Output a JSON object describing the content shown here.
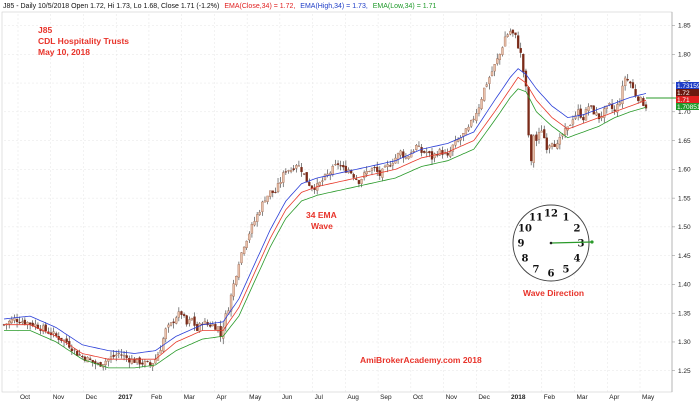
{
  "header": {
    "symbol_info": "J85 - Daily 10/5/2018 Open 1.72, Hi 1.73, Lo 1.68, Close 1.71 (-1.2%)",
    "ema_close": "EMA(Close,34) = 1.72,",
    "ema_high": "EMA(High,34) = 1.73,",
    "ema_low": "EMA(Low,34) = 1.71"
  },
  "annotations": {
    "ticker": "J85",
    "company": "CDL Hospitality Trusts",
    "date": "May 10, 2018",
    "ema_wave_line1": "34 EMA",
    "ema_wave_line2": "Wave",
    "wave_direction": "Wave Direction",
    "watermark": "AmiBrokerAcademy.com  2018"
  },
  "price_labels": [
    {
      "text": "1.73159",
      "color": "#1f3ec7"
    },
    {
      "text": "1.72",
      "color": "#6b1a10"
    },
    {
      "text": "1.71",
      "color": "#e02020"
    },
    {
      "text": "1.70851",
      "color": "#1f9a2a"
    }
  ],
  "clock": {
    "numbers": [
      "12",
      "1",
      "2",
      "3",
      "4",
      "5",
      "6",
      "7",
      "8",
      "9",
      "10",
      "11"
    ]
  },
  "colors": {
    "ema_close": "#e83b2c",
    "ema_high": "#2b3fd8",
    "ema_low": "#2a9a2a",
    "candle_up": "#e8c0aa",
    "candle_down": "#7a2a18",
    "wick": "#333333"
  },
  "chart_data": {
    "type": "candlestick",
    "ylim": [
      1.22,
      1.87
    ],
    "y_ticks": [
      "1.85",
      "1.80",
      "1.75",
      "1.70",
      "1.65",
      "1.60",
      "1.55",
      "1.50",
      "1.45",
      "1.40",
      "1.35",
      "1.30",
      "1.25"
    ],
    "x_ticks": [
      "Oct",
      "Nov",
      "Dec",
      "2017",
      "Feb",
      "Mar",
      "Apr",
      "May",
      "Jun",
      "Jul",
      "Aug",
      "Sep",
      "Oct",
      "Nov",
      "Dec",
      "2018",
      "Feb",
      "Mar",
      "Apr",
      "May"
    ],
    "bold_x_ticks": [
      "2017",
      "2018"
    ],
    "series": [
      {
        "name": "EMA(Close,34)"
      },
      {
        "name": "EMA(High,34)"
      },
      {
        "name": "EMA(Low,34)"
      }
    ],
    "close_path": [
      [
        0,
        1.33
      ],
      [
        4,
        1.34
      ],
      [
        8,
        1.335
      ],
      [
        12,
        1.33
      ],
      [
        16,
        1.32
      ],
      [
        20,
        1.31
      ],
      [
        24,
        1.3
      ],
      [
        28,
        1.28
      ],
      [
        32,
        1.27
      ],
      [
        36,
        1.26
      ],
      [
        40,
        1.27
      ],
      [
        44,
        1.28
      ],
      [
        48,
        1.27
      ],
      [
        52,
        1.265
      ],
      [
        56,
        1.26
      ],
      [
        58,
        1.27
      ],
      [
        60,
        1.29
      ],
      [
        62,
        1.32
      ],
      [
        64,
        1.33
      ],
      [
        66,
        1.345
      ],
      [
        68,
        1.35
      ],
      [
        70,
        1.33
      ],
      [
        72,
        1.34
      ],
      [
        74,
        1.32
      ],
      [
        76,
        1.335
      ],
      [
        78,
        1.33
      ],
      [
        80,
        1.33
      ],
      [
        82,
        1.325
      ],
      [
        83,
        1.31
      ],
      [
        84,
        1.33
      ],
      [
        86,
        1.36
      ],
      [
        88,
        1.4
      ],
      [
        90,
        1.44
      ],
      [
        92,
        1.47
      ],
      [
        94,
        1.49
      ],
      [
        96,
        1.51
      ],
      [
        98,
        1.53
      ],
      [
        100,
        1.55
      ],
      [
        102,
        1.56
      ],
      [
        104,
        1.56
      ],
      [
        106,
        1.58
      ],
      [
        108,
        1.6
      ],
      [
        110,
        1.6
      ],
      [
        112,
        1.61
      ],
      [
        114,
        1.6
      ],
      [
        116,
        1.58
      ],
      [
        118,
        1.57
      ],
      [
        120,
        1.57
      ],
      [
        122,
        1.58
      ],
      [
        124,
        1.59
      ],
      [
        126,
        1.6
      ],
      [
        128,
        1.61
      ],
      [
        130,
        1.6
      ],
      [
        132,
        1.6
      ],
      [
        134,
        1.59
      ],
      [
        136,
        1.58
      ],
      [
        138,
        1.59
      ],
      [
        140,
        1.6
      ],
      [
        142,
        1.6
      ],
      [
        144,
        1.59
      ],
      [
        146,
        1.6
      ],
      [
        148,
        1.61
      ],
      [
        150,
        1.62
      ],
      [
        152,
        1.63
      ],
      [
        154,
        1.62
      ],
      [
        156,
        1.63
      ],
      [
        158,
        1.64
      ],
      [
        160,
        1.63
      ],
      [
        162,
        1.63
      ],
      [
        164,
        1.62
      ],
      [
        166,
        1.63
      ],
      [
        168,
        1.63
      ],
      [
        170,
        1.62
      ],
      [
        172,
        1.64
      ],
      [
        174,
        1.65
      ],
      [
        176,
        1.66
      ],
      [
        178,
        1.67
      ],
      [
        180,
        1.69
      ],
      [
        182,
        1.71
      ],
      [
        184,
        1.74
      ],
      [
        186,
        1.76
      ],
      [
        188,
        1.78
      ],
      [
        190,
        1.8
      ],
      [
        192,
        1.83
      ],
      [
        194,
        1.84
      ],
      [
        196,
        1.83
      ],
      [
        198,
        1.8
      ],
      [
        200,
        1.74
      ],
      [
        201,
        1.66
      ],
      [
        202,
        1.61
      ],
      [
        203,
        1.66
      ],
      [
        204,
        1.65
      ],
      [
        206,
        1.67
      ],
      [
        208,
        1.64
      ],
      [
        210,
        1.65
      ],
      [
        212,
        1.64
      ],
      [
        214,
        1.66
      ],
      [
        216,
        1.67
      ],
      [
        218,
        1.69
      ],
      [
        220,
        1.7
      ],
      [
        222,
        1.69
      ],
      [
        224,
        1.71
      ],
      [
        226,
        1.7
      ],
      [
        228,
        1.69
      ],
      [
        230,
        1.7
      ],
      [
        232,
        1.71
      ],
      [
        234,
        1.7
      ],
      [
        236,
        1.72
      ],
      [
        238,
        1.76
      ],
      [
        240,
        1.75
      ],
      [
        242,
        1.73
      ],
      [
        244,
        1.72
      ],
      [
        246,
        1.71
      ]
    ],
    "ema_close_path": [
      [
        0,
        1.33
      ],
      [
        10,
        1.33
      ],
      [
        20,
        1.31
      ],
      [
        30,
        1.28
      ],
      [
        40,
        1.27
      ],
      [
        50,
        1.27
      ],
      [
        58,
        1.27
      ],
      [
        66,
        1.3
      ],
      [
        76,
        1.32
      ],
      [
        84,
        1.32
      ],
      [
        90,
        1.36
      ],
      [
        96,
        1.42
      ],
      [
        102,
        1.48
      ],
      [
        108,
        1.53
      ],
      [
        114,
        1.56
      ],
      [
        120,
        1.57
      ],
      [
        130,
        1.58
      ],
      [
        140,
        1.59
      ],
      [
        150,
        1.6
      ],
      [
        160,
        1.62
      ],
      [
        170,
        1.63
      ],
      [
        180,
        1.65
      ],
      [
        188,
        1.7
      ],
      [
        194,
        1.74
      ],
      [
        197,
        1.76
      ],
      [
        200,
        1.75
      ],
      [
        204,
        1.72
      ],
      [
        210,
        1.69
      ],
      [
        216,
        1.67
      ],
      [
        222,
        1.68
      ],
      [
        228,
        1.69
      ],
      [
        234,
        1.7
      ],
      [
        240,
        1.71
      ],
      [
        246,
        1.72
      ]
    ],
    "ema_high_path": [
      [
        0,
        1.34
      ],
      [
        10,
        1.345
      ],
      [
        20,
        1.325
      ],
      [
        30,
        1.295
      ],
      [
        40,
        1.285
      ],
      [
        50,
        1.28
      ],
      [
        58,
        1.285
      ],
      [
        66,
        1.31
      ],
      [
        76,
        1.33
      ],
      [
        84,
        1.335
      ],
      [
        90,
        1.375
      ],
      [
        96,
        1.435
      ],
      [
        102,
        1.495
      ],
      [
        108,
        1.545
      ],
      [
        114,
        1.575
      ],
      [
        120,
        1.585
      ],
      [
        130,
        1.595
      ],
      [
        140,
        1.605
      ],
      [
        150,
        1.615
      ],
      [
        160,
        1.635
      ],
      [
        170,
        1.645
      ],
      [
        180,
        1.665
      ],
      [
        188,
        1.72
      ],
      [
        194,
        1.76
      ],
      [
        197,
        1.775
      ],
      [
        200,
        1.765
      ],
      [
        204,
        1.74
      ],
      [
        210,
        1.71
      ],
      [
        216,
        1.69
      ],
      [
        222,
        1.695
      ],
      [
        228,
        1.705
      ],
      [
        234,
        1.715
      ],
      [
        240,
        1.725
      ],
      [
        246,
        1.732
      ]
    ],
    "ema_low_path": [
      [
        0,
        1.32
      ],
      [
        10,
        1.32
      ],
      [
        20,
        1.3
      ],
      [
        30,
        1.27
      ],
      [
        40,
        1.255
      ],
      [
        50,
        1.255
      ],
      [
        58,
        1.26
      ],
      [
        66,
        1.285
      ],
      [
        76,
        1.305
      ],
      [
        84,
        1.31
      ],
      [
        90,
        1.345
      ],
      [
        96,
        1.405
      ],
      [
        102,
        1.465
      ],
      [
        108,
        1.515
      ],
      [
        114,
        1.545
      ],
      [
        120,
        1.555
      ],
      [
        130,
        1.565
      ],
      [
        140,
        1.575
      ],
      [
        150,
        1.585
      ],
      [
        160,
        1.605
      ],
      [
        170,
        1.615
      ],
      [
        180,
        1.635
      ],
      [
        188,
        1.685
      ],
      [
        194,
        1.725
      ],
      [
        197,
        1.74
      ],
      [
        200,
        1.735
      ],
      [
        204,
        1.7
      ],
      [
        210,
        1.675
      ],
      [
        216,
        1.655
      ],
      [
        222,
        1.665
      ],
      [
        228,
        1.675
      ],
      [
        234,
        1.69
      ],
      [
        240,
        1.7
      ],
      [
        246,
        1.708
      ]
    ]
  }
}
